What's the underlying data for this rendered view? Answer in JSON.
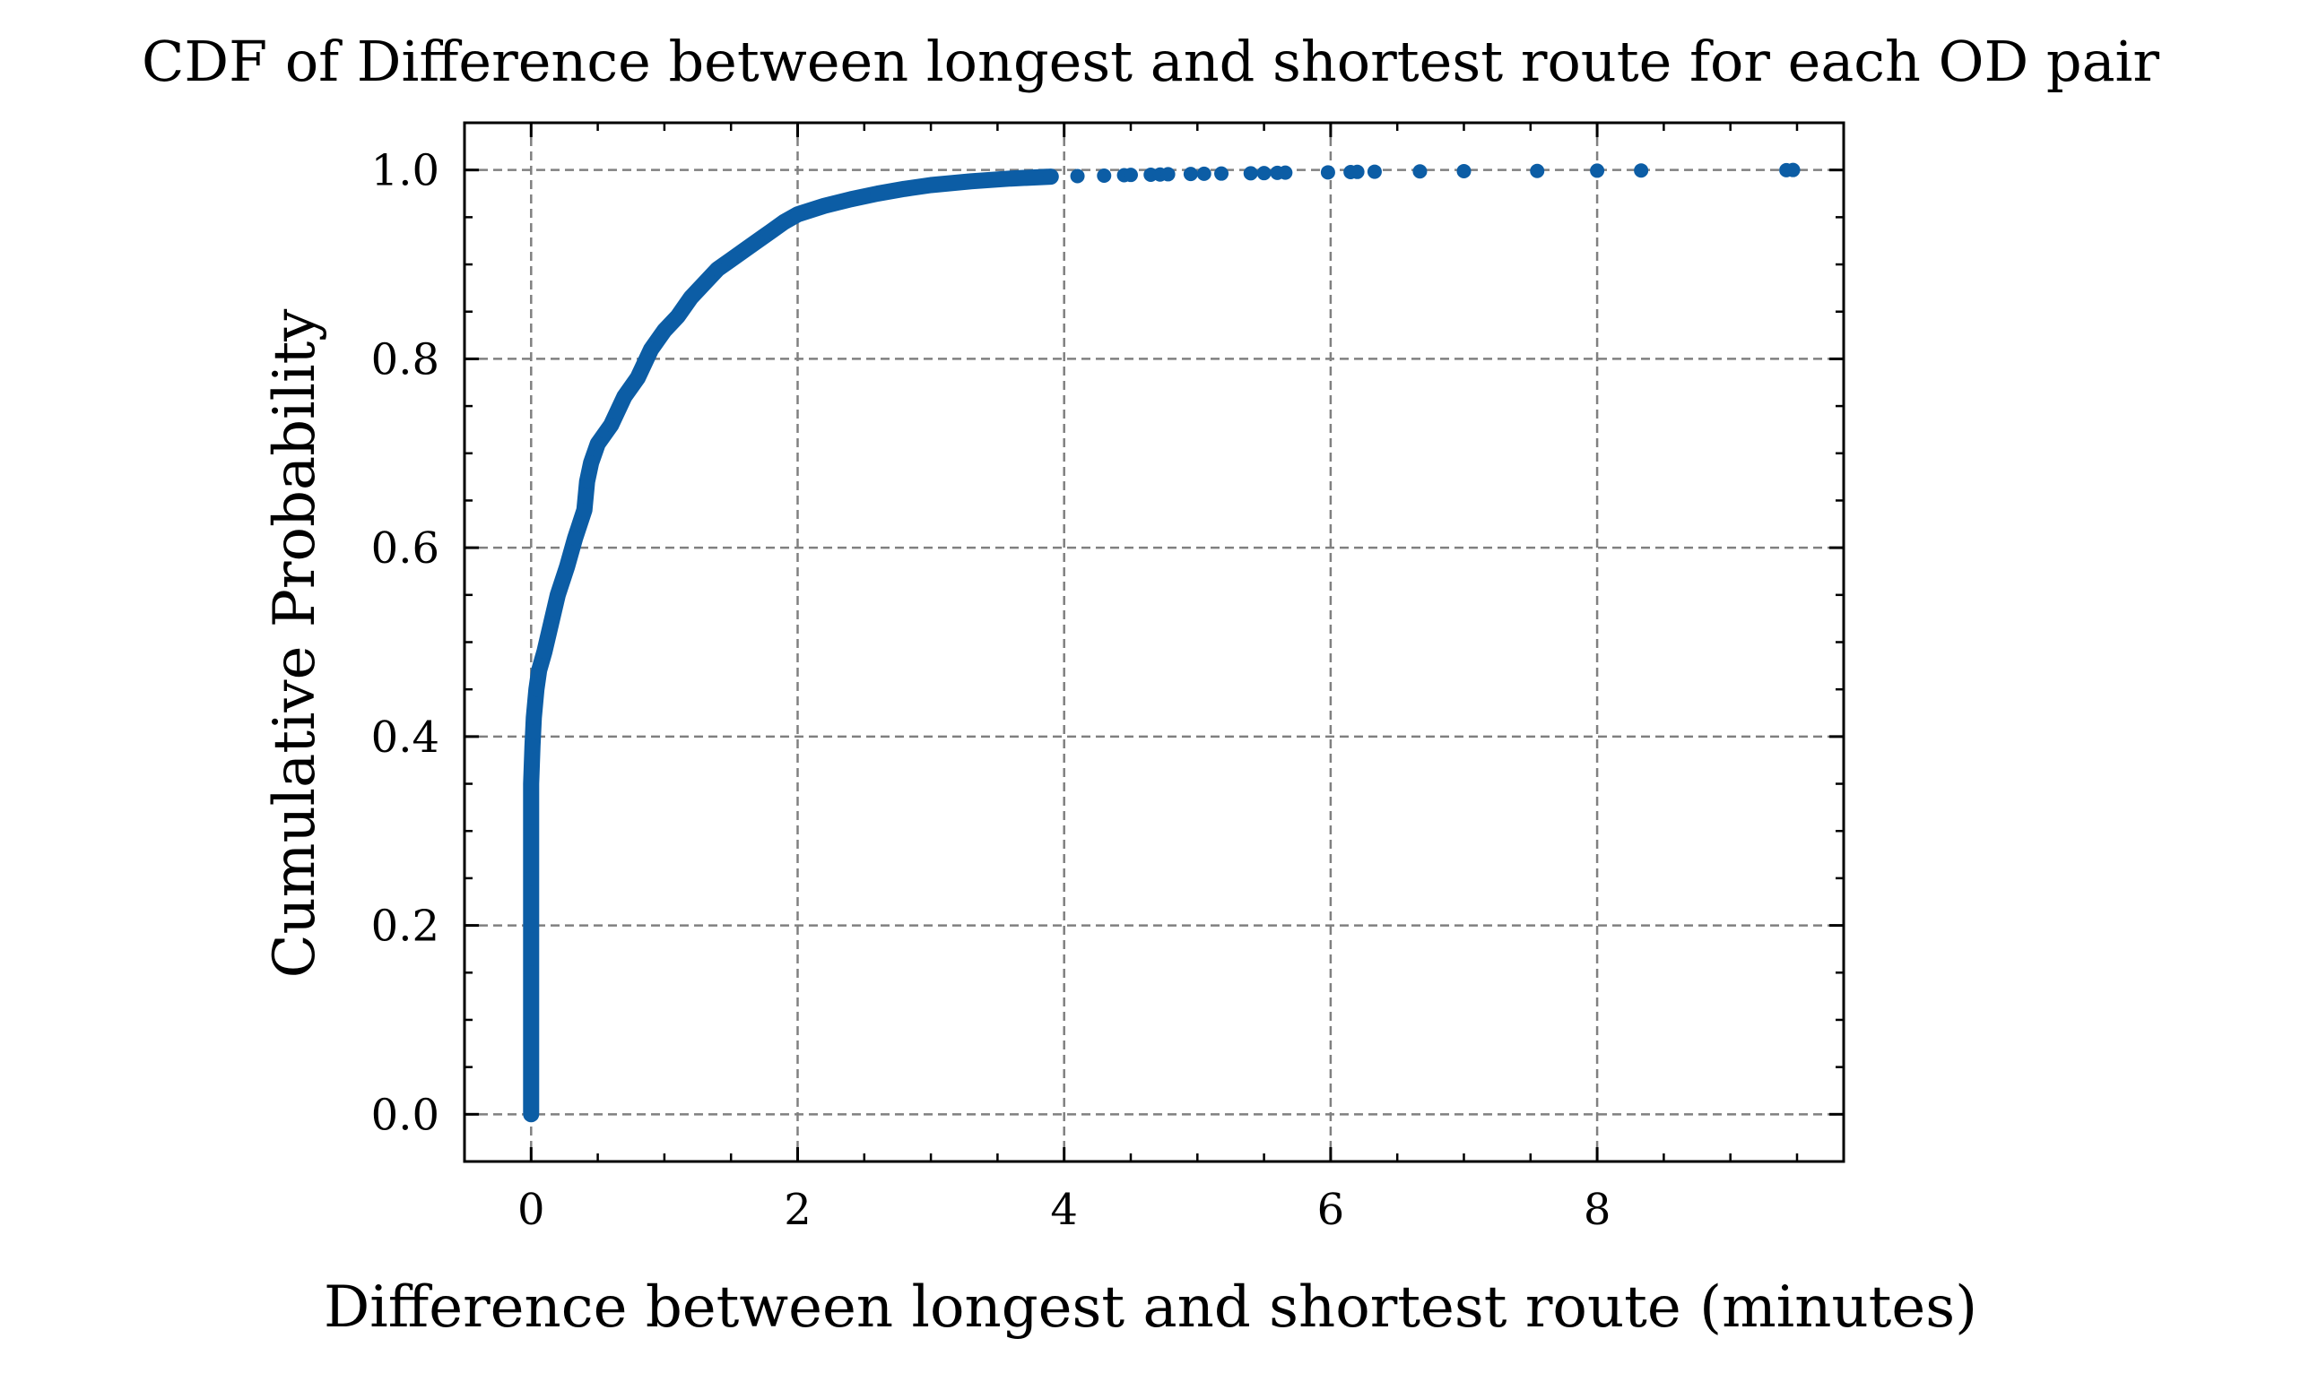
{
  "chart_data": {
    "type": "scatter",
    "title": "CDF of Difference between longest and shortest route for each OD pair",
    "xlabel": "Difference between longest and shortest route (minutes)",
    "ylabel": "Cumulative Probability",
    "xlim": [
      -0.5,
      9.85
    ],
    "ylim": [
      -0.05,
      1.05
    ],
    "x_ticks": [
      0,
      2,
      4,
      6,
      8
    ],
    "y_ticks": [
      0.0,
      0.2,
      0.4,
      0.6,
      0.8,
      1.0
    ],
    "x_tick_labels": [
      "0",
      "2",
      "4",
      "6",
      "8"
    ],
    "y_tick_labels": [
      "0.0",
      "0.2",
      "0.4",
      "0.6",
      "0.8",
      "1.0"
    ],
    "grid": true,
    "series": [
      {
        "color": "#0C5DA5",
        "points": [
          [
            0.0,
            0.0
          ],
          [
            0.0,
            0.05
          ],
          [
            0.0,
            0.1
          ],
          [
            0.0,
            0.15
          ],
          [
            0.0,
            0.2
          ],
          [
            0.0,
            0.25
          ],
          [
            0.0,
            0.3
          ],
          [
            0.0,
            0.35
          ],
          [
            0.01,
            0.39
          ],
          [
            0.02,
            0.42
          ],
          [
            0.04,
            0.45
          ],
          [
            0.06,
            0.47
          ],
          [
            0.1,
            0.49
          ],
          [
            0.15,
            0.52
          ],
          [
            0.2,
            0.55
          ],
          [
            0.27,
            0.58
          ],
          [
            0.33,
            0.61
          ],
          [
            0.4,
            0.64
          ],
          [
            0.42,
            0.67
          ],
          [
            0.45,
            0.69
          ],
          [
            0.5,
            0.71
          ],
          [
            0.6,
            0.73
          ],
          [
            0.7,
            0.76
          ],
          [
            0.8,
            0.78
          ],
          [
            0.9,
            0.81
          ],
          [
            1.0,
            0.83
          ],
          [
            1.1,
            0.845
          ],
          [
            1.2,
            0.865
          ],
          [
            1.3,
            0.88
          ],
          [
            1.4,
            0.895
          ],
          [
            1.5,
            0.905
          ],
          [
            1.6,
            0.915
          ],
          [
            1.7,
            0.925
          ],
          [
            1.8,
            0.935
          ],
          [
            1.9,
            0.945
          ],
          [
            2.0,
            0.953
          ],
          [
            2.2,
            0.962
          ],
          [
            2.4,
            0.969
          ],
          [
            2.6,
            0.975
          ],
          [
            2.8,
            0.98
          ],
          [
            3.0,
            0.984
          ],
          [
            3.3,
            0.988
          ],
          [
            3.6,
            0.991
          ],
          [
            3.9,
            0.993
          ],
          [
            4.1,
            0.9935
          ],
          [
            4.3,
            0.994
          ],
          [
            4.45,
            0.9945
          ],
          [
            4.5,
            0.9948
          ],
          [
            4.65,
            0.995
          ],
          [
            4.72,
            0.9952
          ],
          [
            4.78,
            0.9955
          ],
          [
            4.95,
            0.9958
          ],
          [
            5.05,
            0.996
          ],
          [
            5.18,
            0.9962
          ],
          [
            5.4,
            0.9965
          ],
          [
            5.5,
            0.9967
          ],
          [
            5.6,
            0.997
          ],
          [
            5.66,
            0.9972
          ],
          [
            5.98,
            0.9975
          ],
          [
            6.15,
            0.9978
          ],
          [
            6.2,
            0.998
          ],
          [
            6.33,
            0.9982
          ],
          [
            6.67,
            0.9985
          ],
          [
            7.0,
            0.9988
          ],
          [
            7.55,
            0.999
          ],
          [
            8.0,
            0.9993
          ],
          [
            8.33,
            0.9995
          ],
          [
            9.42,
            0.9998
          ],
          [
            9.47,
            1.0
          ]
        ]
      }
    ]
  }
}
